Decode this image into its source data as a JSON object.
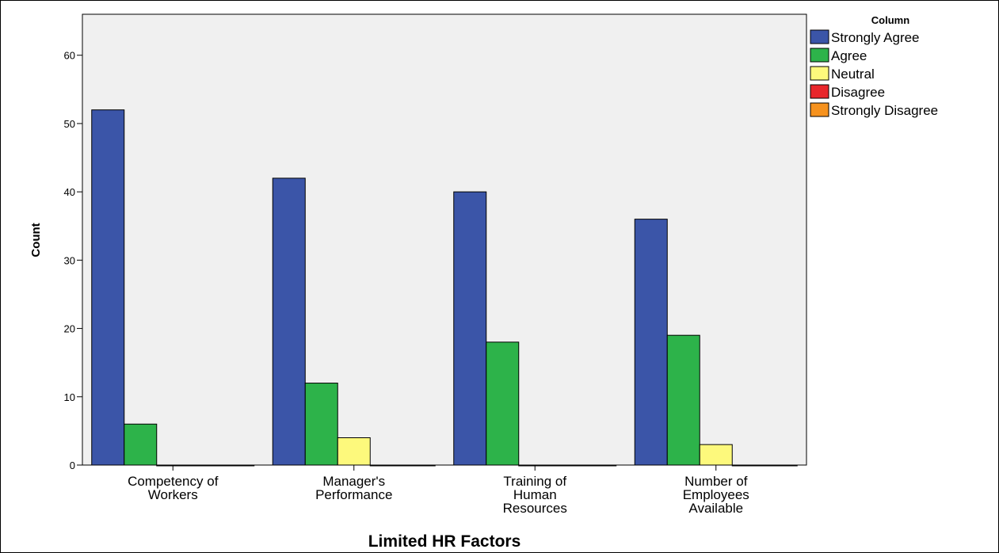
{
  "chart_data": {
    "type": "bar",
    "xlabel": "Limited HR Factors",
    "ylabel": "Count",
    "ylim": [
      0,
      66
    ],
    "yticks": [
      0,
      10,
      20,
      30,
      40,
      50,
      60
    ],
    "grid": false,
    "legend_title": "Column",
    "legend_position": "right",
    "categories": [
      [
        "Competency of",
        "Workers"
      ],
      [
        "Manager's",
        "Performance"
      ],
      [
        "Training of",
        "Human",
        "Resources"
      ],
      [
        "Number of",
        "Employees",
        "Available"
      ]
    ],
    "series": [
      {
        "name": "Strongly Agree",
        "color": "#3B55A8",
        "values": [
          52,
          42,
          40,
          36
        ]
      },
      {
        "name": "Agree",
        "color": "#2DB34A",
        "values": [
          6,
          12,
          18,
          19
        ]
      },
      {
        "name": "Neutral",
        "color": "#FDF97C",
        "values": [
          0,
          4,
          0,
          3
        ]
      },
      {
        "name": "Disagree",
        "color": "#E8262B",
        "values": [
          0,
          0,
          0,
          0
        ]
      },
      {
        "name": "Strongly Disagree",
        "color": "#F6921E",
        "values": [
          0,
          0,
          0,
          0
        ]
      }
    ],
    "plot_background": "#F0F0F0"
  }
}
